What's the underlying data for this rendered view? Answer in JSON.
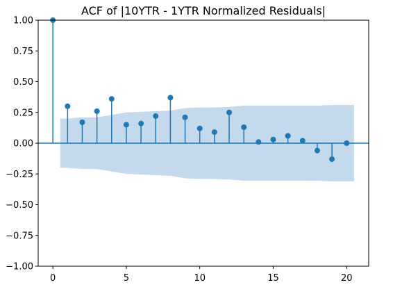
{
  "chart_data": {
    "type": "stem",
    "title": "ACF of |10YTR - 1YTR Normalized Residuals|",
    "xlabel": "",
    "ylabel": "",
    "xlim": [
      -1,
      21.5
    ],
    "ylim": [
      -1.0,
      1.0
    ],
    "xticks": [
      0,
      5,
      10,
      15,
      20
    ],
    "yticks": [
      -1.0,
      -0.75,
      -0.5,
      -0.25,
      0.0,
      0.25,
      0.5,
      0.75,
      1.0
    ],
    "ytick_labels": [
      "−1.00",
      "−0.75",
      "−0.50",
      "−0.25",
      "0.00",
      "0.25",
      "0.50",
      "0.75",
      "1.00"
    ],
    "xtick_labels": [
      "0",
      "5",
      "10",
      "15",
      "20"
    ],
    "grid": false,
    "legend": "none",
    "series": [
      {
        "lags": [
          0,
          1,
          2,
          3,
          4,
          5,
          6,
          7,
          8,
          9,
          10,
          11,
          12,
          13,
          14,
          15,
          16,
          17,
          18,
          19,
          20
        ],
        "acf": [
          1.0,
          0.3,
          0.17,
          0.26,
          0.36,
          0.15,
          0.16,
          0.22,
          0.37,
          0.21,
          0.12,
          0.09,
          0.25,
          0.13,
          0.01,
          0.03,
          0.06,
          0.02,
          -0.06,
          -0.13,
          0.0
        ]
      }
    ],
    "confidence_band": {
      "lags": [
        0.5,
        1,
        2,
        3,
        4,
        5,
        6,
        7,
        8,
        9,
        10,
        11,
        12,
        13,
        14,
        15,
        16,
        17,
        18,
        19,
        20,
        20.5
      ],
      "upper": [
        0.2,
        0.2,
        0.21,
        0.21,
        0.23,
        0.25,
        0.255,
        0.26,
        0.265,
        0.285,
        0.29,
        0.29,
        0.295,
        0.305,
        0.305,
        0.305,
        0.305,
        0.305,
        0.305,
        0.31,
        0.31,
        0.31
      ]
    },
    "colors": {
      "stem": "#1f77b4",
      "band": "#c5d9ec",
      "axis": "#000000"
    }
  }
}
